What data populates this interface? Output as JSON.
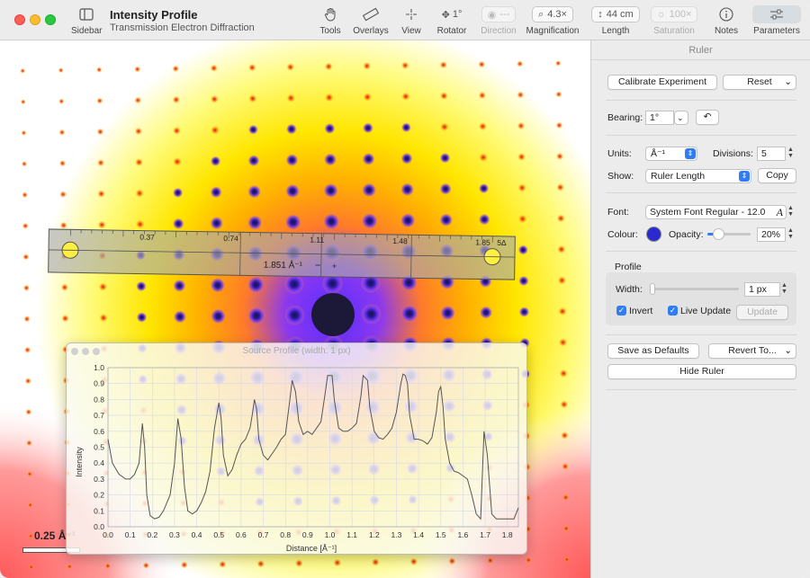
{
  "window": {
    "title": "Intensity Profile",
    "subtitle": "Transmission Electron Diffraction"
  },
  "toolbar": {
    "sidebar": "Sidebar",
    "tools": "Tools",
    "overlays": "Overlays",
    "view": "View",
    "rotator": "Rotator",
    "rotator_value": "1°",
    "direction": "Direction",
    "direction_value": "---",
    "magnification": "Magnification",
    "magnification_value": "4.3×",
    "length": "Length",
    "length_value": "44 cm",
    "saturation": "Saturation",
    "saturation_value": "100×",
    "notes": "Notes",
    "parameters": "Parameters"
  },
  "panel": {
    "title": "Ruler",
    "calibrate_button": "Calibrate Experiment",
    "reset_button": "Reset",
    "bearing_label": "Bearing:",
    "bearing_value": "1°",
    "units_label": "Units:",
    "units_value": "Å⁻¹",
    "divisions_label": "Divisions:",
    "divisions_value": "5",
    "show_label": "Show:",
    "show_value": "Ruler Length",
    "copy_button": "Copy",
    "font_label": "Font:",
    "font_value": "System Font Regular - 12.0",
    "colour_label": "Colour:",
    "opacity_label": "Opacity:",
    "opacity_value": "20%",
    "profile_label": "Profile",
    "width_label": "Width:",
    "width_value": "1 px",
    "invert_label": "Invert",
    "live_update_label": "Live Update",
    "update_button": "Update",
    "save_defaults_button": "Save as Defaults",
    "revert_button": "Revert To...",
    "hide_ruler_button": "Hide Ruler"
  },
  "ruler": {
    "ticks": [
      "0.37",
      "0.74",
      "1.11",
      "1.48",
      "1.85"
    ],
    "end_label": "5Δ",
    "length_label": "1.851 Å⁻¹",
    "minus": "−",
    "plus": "+"
  },
  "scale_bar": {
    "label": "0.25 Å⁻¹"
  },
  "profile_window": {
    "title": "Source Profile (width: 1 px)"
  },
  "colors": {
    "ruler_colour": "#2a2ad0",
    "accent": "#2f7cf6"
  },
  "chart_data": {
    "type": "line",
    "title": "",
    "xlabel": "Distance [Å⁻¹]",
    "ylabel": "Intensity",
    "xlim": [
      0,
      1.85
    ],
    "ylim": [
      0,
      1.0
    ],
    "xticks": [
      "0.0",
      "0.1",
      "0.2",
      "0.3",
      "0.4",
      "0.5",
      "0.6",
      "0.7",
      "0.8",
      "0.9",
      "1.0",
      "1.1",
      "1.2",
      "1.3",
      "1.4",
      "1.5",
      "1.6",
      "1.7",
      "1.8"
    ],
    "yticks": [
      "0.0",
      "0.1",
      "0.2",
      "0.3",
      "0.4",
      "0.5",
      "0.6",
      "0.7",
      "0.8",
      "0.9",
      "1.0"
    ],
    "grid": true,
    "series": [
      {
        "x": [
          0.0,
          0.02,
          0.05,
          0.08,
          0.1,
          0.12,
          0.14,
          0.155,
          0.165,
          0.175,
          0.19,
          0.21,
          0.23,
          0.25,
          0.28,
          0.3,
          0.315,
          0.33,
          0.345,
          0.36,
          0.38,
          0.4,
          0.42,
          0.44,
          0.46,
          0.48,
          0.49,
          0.5,
          0.51,
          0.52,
          0.54,
          0.56,
          0.58,
          0.6,
          0.62,
          0.64,
          0.65,
          0.66,
          0.67,
          0.68,
          0.7,
          0.72,
          0.74,
          0.76,
          0.78,
          0.8,
          0.82,
          0.83,
          0.845,
          0.86,
          0.88,
          0.9,
          0.92,
          0.94,
          0.96,
          0.98,
          0.99,
          1.0,
          1.01,
          1.02,
          1.04,
          1.06,
          1.08,
          1.1,
          1.12,
          1.14,
          1.15,
          1.17,
          1.18,
          1.2,
          1.22,
          1.24,
          1.26,
          1.28,
          1.3,
          1.32,
          1.33,
          1.34,
          1.35,
          1.36,
          1.38,
          1.4,
          1.42,
          1.44,
          1.46,
          1.48,
          1.49,
          1.5,
          1.51,
          1.52,
          1.54,
          1.56,
          1.58,
          1.6,
          1.62,
          1.64,
          1.66,
          1.68,
          1.695,
          1.71,
          1.73,
          1.75,
          1.77,
          1.79,
          1.81,
          1.83,
          1.85
        ],
        "values": [
          0.55,
          0.4,
          0.33,
          0.3,
          0.3,
          0.33,
          0.4,
          0.65,
          0.5,
          0.2,
          0.07,
          0.05,
          0.06,
          0.1,
          0.2,
          0.4,
          0.68,
          0.55,
          0.25,
          0.1,
          0.08,
          0.1,
          0.15,
          0.22,
          0.35,
          0.62,
          0.7,
          0.78,
          0.68,
          0.45,
          0.32,
          0.36,
          0.45,
          0.52,
          0.55,
          0.62,
          0.7,
          0.8,
          0.74,
          0.55,
          0.45,
          0.42,
          0.46,
          0.5,
          0.55,
          0.58,
          0.8,
          0.92,
          0.85,
          0.66,
          0.58,
          0.6,
          0.58,
          0.62,
          0.66,
          0.85,
          0.95,
          0.95,
          0.95,
          0.8,
          0.62,
          0.6,
          0.6,
          0.62,
          0.65,
          0.82,
          0.95,
          0.92,
          0.75,
          0.6,
          0.56,
          0.55,
          0.58,
          0.62,
          0.72,
          0.9,
          0.96,
          0.95,
          0.9,
          0.7,
          0.55,
          0.55,
          0.54,
          0.52,
          0.56,
          0.72,
          0.85,
          0.88,
          0.76,
          0.55,
          0.4,
          0.35,
          0.34,
          0.32,
          0.3,
          0.2,
          0.08,
          0.05,
          0.6,
          0.45,
          0.08,
          0.05,
          0.05,
          0.05,
          0.05,
          0.05,
          0.12
        ]
      }
    ]
  }
}
